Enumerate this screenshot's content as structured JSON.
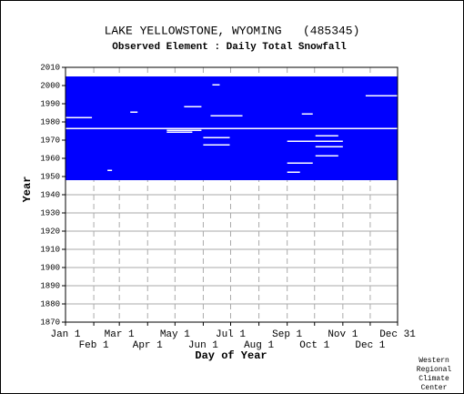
{
  "chart_data": {
    "type": "availability",
    "title": "LAKE YELLOWSTONE, WYOMING   (485345)",
    "subtitle": "Observed Element : Daily Total Snowfall",
    "xlabel": "Day of Year",
    "ylabel": "Year",
    "credit": [
      "Western",
      "Regional",
      "Climate",
      "Center"
    ],
    "color": "#0000ff",
    "record": {
      "first_year": 1948,
      "last_year": 2004
    },
    "gaps": [
      {
        "year": 1976,
        "start": 1,
        "end": 365
      },
      {
        "year": 1982,
        "start": 1,
        "end": 30
      },
      {
        "year": 1994,
        "start": 330,
        "end": 365
      },
      {
        "year": 1983,
        "start": 160,
        "end": 195
      },
      {
        "year": 1985,
        "start": 72,
        "end": 80
      },
      {
        "year": 1975,
        "start": 112,
        "end": 150
      },
      {
        "year": 1974,
        "start": 112,
        "end": 140
      },
      {
        "year": 1988,
        "start": 131,
        "end": 150
      },
      {
        "year": 1971,
        "start": 152,
        "end": 181
      },
      {
        "year": 1967,
        "start": 152,
        "end": 181
      },
      {
        "year": 1969,
        "start": 244,
        "end": 305
      },
      {
        "year": 1966,
        "start": 275,
        "end": 305
      },
      {
        "year": 1972,
        "start": 275,
        "end": 300
      },
      {
        "year": 1961,
        "start": 275,
        "end": 300
      },
      {
        "year": 1957,
        "start": 244,
        "end": 272
      },
      {
        "year": 1952,
        "start": 244,
        "end": 258
      },
      {
        "year": 2000,
        "start": 162,
        "end": 170
      },
      {
        "year": 1984,
        "start": 260,
        "end": 272
      },
      {
        "year": 1953,
        "start": 47,
        "end": 52
      }
    ],
    "xlim": [
      1,
      365
    ],
    "ylim": [
      1870,
      2010
    ],
    "xticks": [
      {
        "value": 1,
        "label": "Jan 1"
      },
      {
        "value": 32,
        "label": "Feb 1"
      },
      {
        "value": 60,
        "label": "Mar 1"
      },
      {
        "value": 91,
        "label": "Apr 1"
      },
      {
        "value": 121,
        "label": "May 1"
      },
      {
        "value": 152,
        "label": "Jun 1"
      },
      {
        "value": 182,
        "label": "Jul 1"
      },
      {
        "value": 213,
        "label": "Aug 1"
      },
      {
        "value": 244,
        "label": "Sep 1"
      },
      {
        "value": 274,
        "label": "Oct 1"
      },
      {
        "value": 305,
        "label": "Nov 1"
      },
      {
        "value": 335,
        "label": "Dec 1"
      },
      {
        "value": 365,
        "label": "Dec 31"
      }
    ],
    "yticks": [
      1870,
      1880,
      1890,
      1900,
      1910,
      1920,
      1930,
      1940,
      1950,
      1960,
      1970,
      1980,
      1990,
      2000,
      2010
    ],
    "grid": true
  }
}
